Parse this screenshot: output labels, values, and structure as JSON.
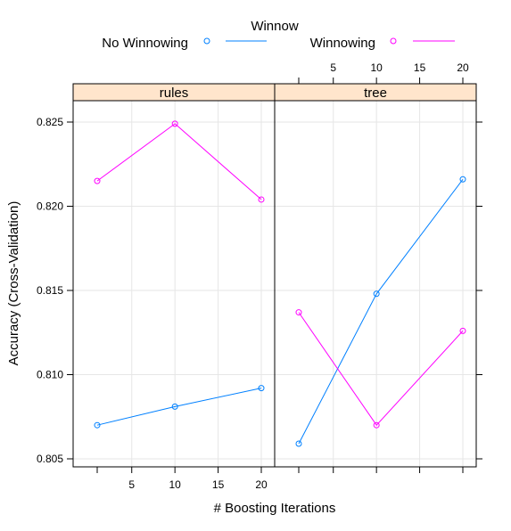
{
  "chart_data": {
    "type": "line",
    "legend": {
      "title": "Winnow",
      "placement": "top",
      "entries": [
        {
          "name": "No Winnowing",
          "color": "#0080ff"
        },
        {
          "name": "Winnowing",
          "color": "#ff00ff"
        }
      ]
    },
    "xlabel": "# Boosting Iterations",
    "ylabel": "Accuracy (Cross-Validation)",
    "x_ticks": [
      "5",
      "10",
      "15",
      "20"
    ],
    "y_ticks": [
      "0.805",
      "0.810",
      "0.815",
      "0.820",
      "0.825"
    ],
    "xlim": [
      0,
      22
    ],
    "ylim": [
      0.8045,
      0.8273
    ],
    "grid": true,
    "panels": [
      {
        "name": "rules",
        "series": [
          {
            "name": "No Winnowing",
            "color": "#0080ff",
            "x": [
              1,
              10,
              20
            ],
            "y": [
              0.807,
              0.8081,
              0.8092
            ]
          },
          {
            "name": "Winnowing",
            "color": "#ff00ff",
            "x": [
              1,
              10,
              20
            ],
            "y": [
              0.8215,
              0.8249,
              0.8204
            ]
          }
        ]
      },
      {
        "name": "tree",
        "series": [
          {
            "name": "No Winnowing",
            "color": "#0080ff",
            "x": [
              1,
              10,
              20
            ],
            "y": [
              0.8059,
              0.8148,
              0.8216
            ]
          },
          {
            "name": "Winnowing",
            "color": "#ff00ff",
            "x": [
              1,
              10,
              20
            ],
            "y": [
              0.8137,
              0.807,
              0.8126
            ]
          }
        ]
      }
    ]
  }
}
